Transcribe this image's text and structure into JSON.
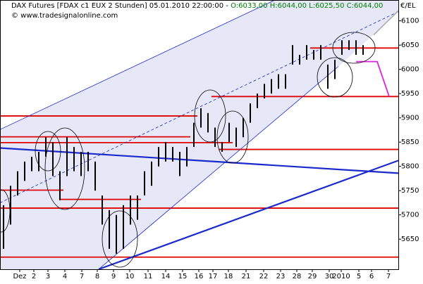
{
  "chart_data": {
    "type": "range-bars",
    "title": "DAX Futures [FDAX c1 EUX 2 Stunden] 05.01.2010 22:00:00 -",
    "ohlc_text": [
      "O:6033,00",
      "H:6044,00",
      "L:6025,50",
      "C:6044,00"
    ],
    "credit": "© www.tradesignalonline.com",
    "unit_label": "€/EL",
    "bar_color": "#000000",
    "high": [
      5720,
      5760,
      5790,
      5810,
      5820,
      5830,
      5860,
      5850,
      5790,
      5860,
      5840,
      5830,
      5830,
      5810,
      5740,
      5710,
      5700,
      5720,
      5740,
      5740,
      5790,
      5810,
      5840,
      5850,
      5840,
      5830,
      5840,
      5890,
      5920,
      5910,
      5880,
      5850,
      5890,
      5880,
      5900,
      5930,
      5950,
      5970,
      5980,
      5990,
      5990,
      6050,
      6030,
      6050,
      6040,
      6050,
      6010,
      6020,
      6060,
      6060,
      6060,
      6050
    ],
    "low": [
      5630,
      5680,
      5740,
      5770,
      5790,
      5790,
      5820,
      5780,
      5730,
      5780,
      5790,
      5780,
      5790,
      5750,
      5680,
      5630,
      5620,
      5630,
      5680,
      5690,
      5740,
      5760,
      5800,
      5810,
      5810,
      5780,
      5800,
      5840,
      5880,
      5870,
      5840,
      5830,
      5850,
      5840,
      5860,
      5890,
      5920,
      5940,
      5950,
      5960,
      5960,
      6010,
      6010,
      6020,
      6020,
      6020,
      5960,
      5980,
      6030,
      6040,
      6030,
      6030
    ],
    "xlim": [
      -0.5,
      56
    ],
    "xticks": [
      {
        "value": 2.3,
        "label": "Dez"
      },
      {
        "value": 4.3,
        "label": "2"
      },
      {
        "value": 6.3,
        "label": "3"
      },
      {
        "value": 8.7,
        "label": "4"
      },
      {
        "value": 11.1,
        "label": "7"
      },
      {
        "value": 13.3,
        "label": "8"
      },
      {
        "value": 15.6,
        "label": "9"
      },
      {
        "value": 17.9,
        "label": "10"
      },
      {
        "value": 20.5,
        "label": "11"
      },
      {
        "value": 23,
        "label": "14"
      },
      {
        "value": 25.4,
        "label": "15"
      },
      {
        "value": 27.7,
        "label": "16"
      },
      {
        "value": 29.7,
        "label": "17"
      },
      {
        "value": 31.9,
        "label": "18"
      },
      {
        "value": 34.4,
        "label": "21"
      },
      {
        "value": 36.9,
        "label": "22"
      },
      {
        "value": 39.3,
        "label": "23"
      },
      {
        "value": 41.6,
        "label": "28"
      },
      {
        "value": 43.8,
        "label": "29"
      },
      {
        "value": 46.2,
        "label": "30"
      },
      {
        "value": 47.9,
        "label": "2010"
      },
      {
        "value": 50.4,
        "label": "5"
      },
      {
        "value": 52.2,
        "label": "6"
      },
      {
        "value": 54.6,
        "label": "7"
      }
    ],
    "ylim": [
      5588,
      6143
    ],
    "yticks": [
      5650,
      5700,
      5750,
      5800,
      5850,
      5900,
      5950,
      6000,
      6050,
      6100
    ],
    "levels": [
      {
        "y": 5904,
        "x": [
          -0.5,
          27.5
        ]
      },
      {
        "y": 5861,
        "x": [
          -0.5,
          26.5
        ]
      },
      {
        "y": 5849,
        "x": [
          -0.5,
          32.5
        ]
      },
      {
        "y": 5835,
        "x": [
          30.5,
          56
        ]
      },
      {
        "y": 5944,
        "x": [
          29.5,
          56
        ]
      },
      {
        "y": 6044,
        "x": [
          43.5,
          56
        ]
      },
      {
        "y": 5751,
        "x": [
          -0.5,
          8.5
        ]
      },
      {
        "y": 5732,
        "x": [
          8,
          19.5
        ]
      },
      {
        "y": 5714,
        "x": [
          -0.5,
          56
        ]
      },
      {
        "y": 5613,
        "x": [
          -0.5,
          56
        ]
      }
    ],
    "level_color": "#e00000",
    "trendlines": [
      {
        "x": [
          13.5,
          56
        ],
        "y": [
          5588,
          5812
        ],
        "color": "#1a2acc",
        "width": 2.2
      },
      {
        "x": [
          -0.5,
          56
        ],
        "y": [
          5838,
          5786
        ],
        "color": "#1a2acc",
        "width": 2.2
      },
      {
        "x": [
          -0.5,
          38.5
        ],
        "y": [
          5876,
          6143
        ],
        "color": "#1a2acc",
        "width": 0.8
      },
      {
        "x": [
          -0.5,
          56
        ],
        "y": [
          5725,
          6119
        ],
        "color": "#1a2acc",
        "width": 0.8,
        "dashed": true
      },
      {
        "x": [
          13.5,
          47.5
        ],
        "y": [
          5588,
          6006
        ],
        "color": "#1a2acc",
        "width": 0.8
      },
      {
        "x": [
          52.5,
          56
        ],
        "y": [
          6071,
          6121
        ],
        "color": "#aaaaaa",
        "width": 1.5
      },
      {
        "x": [
          50,
          53,
          54.7
        ],
        "y": [
          6016,
          6016,
          5944
        ],
        "color": "#e020e0",
        "width": 1.8
      }
    ]
  }
}
